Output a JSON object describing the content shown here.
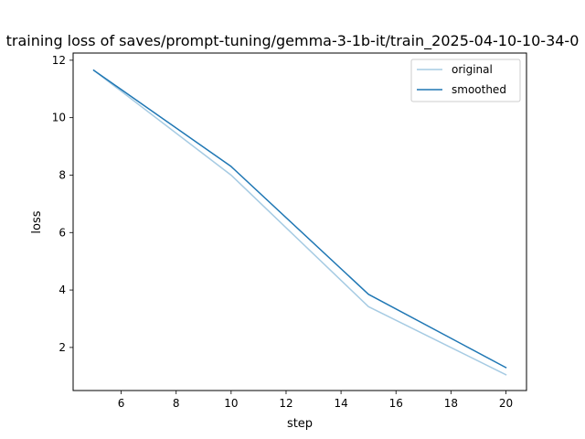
{
  "chart_data": {
    "type": "line",
    "title": "training loss of saves/prompt-tuning/gemma-3-1b-it/train_2025-04-10-10-34-0",
    "xlabel": "step",
    "ylabel": "loss",
    "xlim": [
      4.25,
      20.75
    ],
    "ylim": [
      0.5,
      12.25
    ],
    "xticks": [
      6,
      8,
      10,
      12,
      14,
      16,
      18,
      20
    ],
    "yticks": [
      2,
      4,
      6,
      8,
      10,
      12
    ],
    "x": [
      5,
      10,
      15,
      20
    ],
    "series": [
      {
        "name": "original",
        "values": [
          11.65,
          8.0,
          3.42,
          1.05
        ],
        "color": "#a6cbe3"
      },
      {
        "name": "smoothed",
        "values": [
          11.65,
          8.3,
          3.85,
          1.3
        ],
        "color": "#1f77b4"
      }
    ],
    "legend_position": "upper right",
    "grid": false
  }
}
